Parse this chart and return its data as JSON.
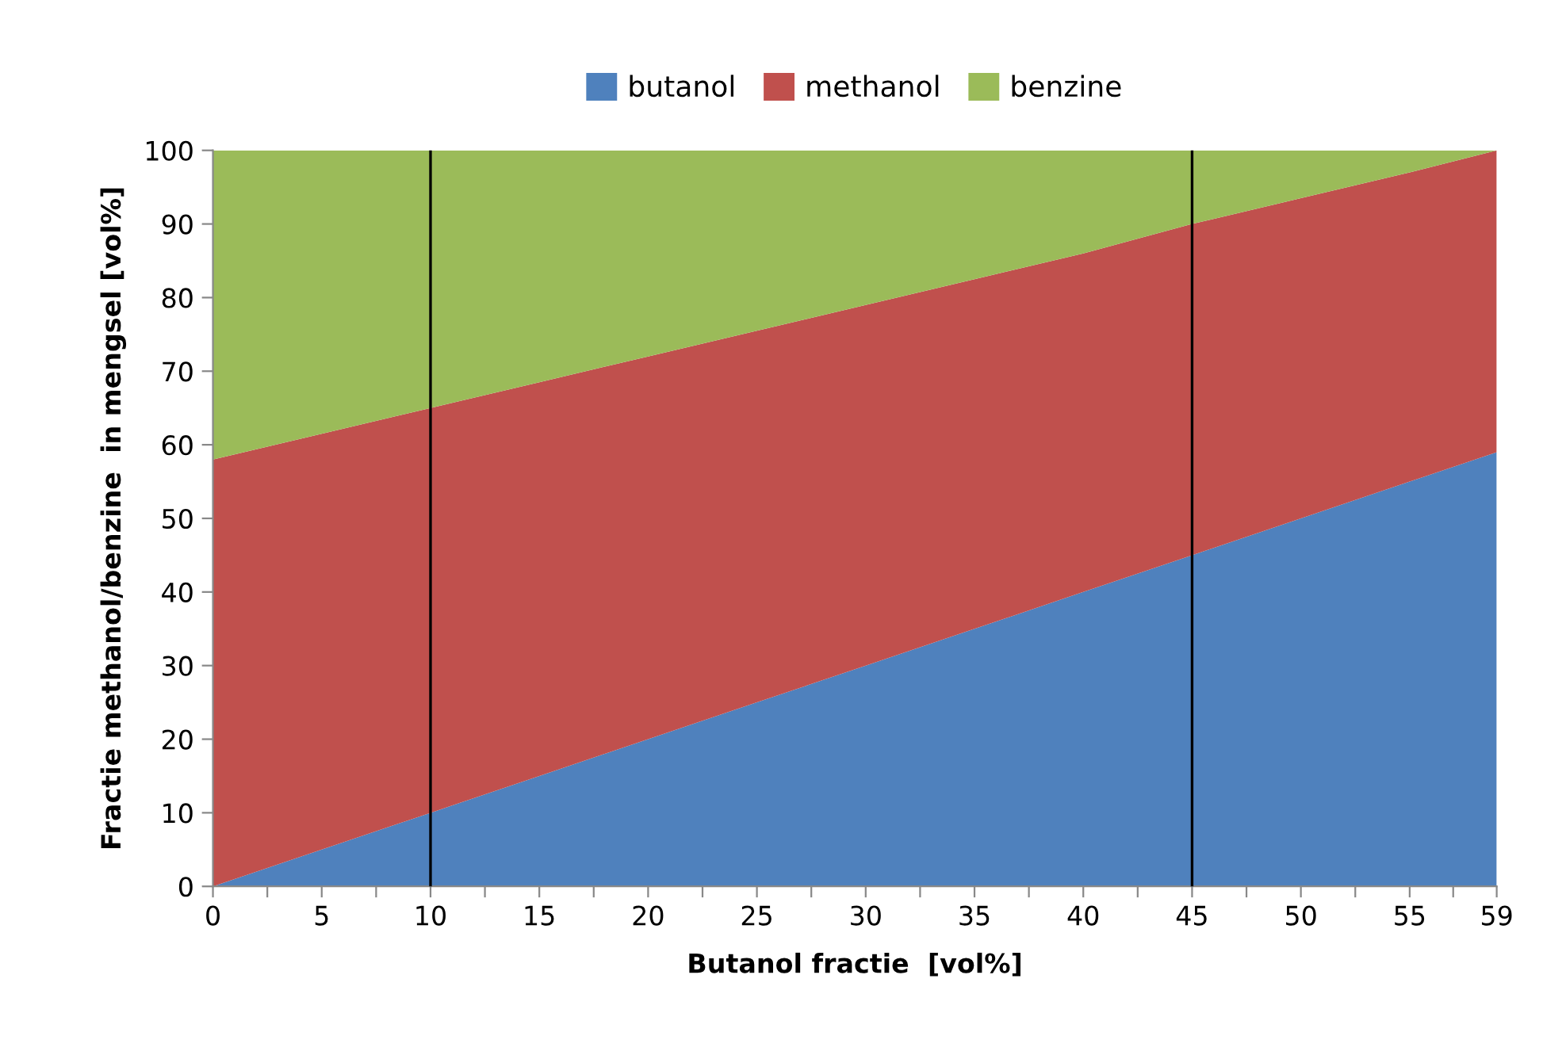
{
  "chart_data": {
    "type": "area",
    "stacked": true,
    "xlabel": "Butanol fractie  [vol%]",
    "ylabel": "Fractie methanol/benzine  in mengsel [vol%]",
    "x": [
      0,
      5,
      10,
      15,
      20,
      25,
      30,
      35,
      40,
      45,
      50,
      55,
      59
    ],
    "series": [
      {
        "name": "butanol",
        "color": "#4f81bd",
        "values": [
          0,
          5,
          10,
          15,
          20,
          25,
          30,
          35,
          40,
          45,
          50,
          55,
          59
        ]
      },
      {
        "name": "methanol",
        "color": "#c0504d",
        "values": [
          58,
          56.5,
          55,
          53.5,
          52,
          50.5,
          49,
          47.5,
          46,
          45,
          43.5,
          42,
          41
        ]
      },
      {
        "name": "benzine",
        "color": "#9bbb59",
        "values": [
          42,
          38.5,
          35,
          31.5,
          28,
          24.5,
          21,
          17.5,
          14,
          10,
          6.5,
          3,
          0
        ]
      }
    ],
    "xlim": [
      0,
      59
    ],
    "xticks": [
      0,
      {
        "value": 2.5,
        "label": null
      },
      5,
      {
        "value": 7.5,
        "label": null
      },
      10,
      {
        "value": 12.5,
        "label": null
      },
      15,
      {
        "value": 17.5,
        "label": null
      },
      20,
      {
        "value": 22.5,
        "label": null
      },
      25,
      {
        "value": 27.5,
        "label": null
      },
      30,
      {
        "value": 32.5,
        "label": null
      },
      35,
      {
        "value": 37.5,
        "label": null
      },
      40,
      {
        "value": 42.5,
        "label": null
      },
      45,
      {
        "value": 47.5,
        "label": null
      },
      50,
      {
        "value": 52.5,
        "label": null
      },
      55,
      {
        "value": 57,
        "label": null
      },
      59
    ],
    "ylim": [
      0,
      100
    ],
    "yticks": [
      0,
      10,
      20,
      30,
      40,
      50,
      60,
      70,
      80,
      90,
      100
    ],
    "ref_lines": [
      {
        "axis": "x",
        "value": 10,
        "color": "#000000"
      },
      {
        "axis": "x",
        "value": 45,
        "color": "#000000"
      }
    ],
    "legend": "top",
    "grid": false
  }
}
